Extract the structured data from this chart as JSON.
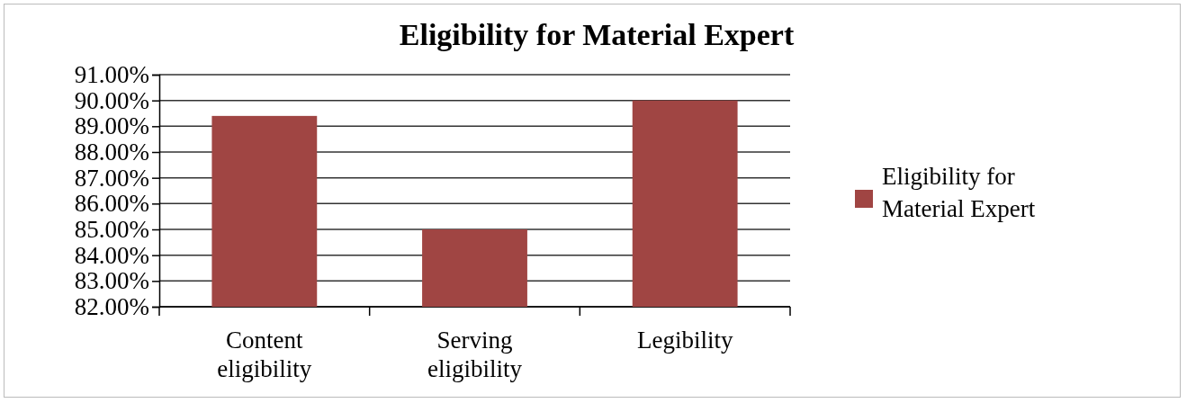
{
  "chart_data": {
    "type": "bar",
    "title": "Eligibility for Material Expert",
    "categories": [
      "Content eligibility",
      "Serving eligibility",
      "Legibility"
    ],
    "series": [
      {
        "name": "Eligibility for Material Expert",
        "color": "#a04543",
        "values": [
          89.4,
          85.0,
          90.0
        ]
      }
    ],
    "ylim": [
      82,
      91
    ],
    "yticks": [
      {
        "value": 82,
        "label": "82.00%"
      },
      {
        "value": 83,
        "label": "83.00%"
      },
      {
        "value": 84,
        "label": "84.00%"
      },
      {
        "value": 85,
        "label": "85.00%"
      },
      {
        "value": 86,
        "label": "86.00%"
      },
      {
        "value": 87,
        "label": "87.00%"
      },
      {
        "value": 88,
        "label": "88.00%"
      },
      {
        "value": 89,
        "label": "89.00%"
      },
      {
        "value": 90,
        "label": "90.00%"
      },
      {
        "value": 91,
        "label": "91.00%"
      }
    ],
    "grid": "y",
    "legend": "right"
  }
}
